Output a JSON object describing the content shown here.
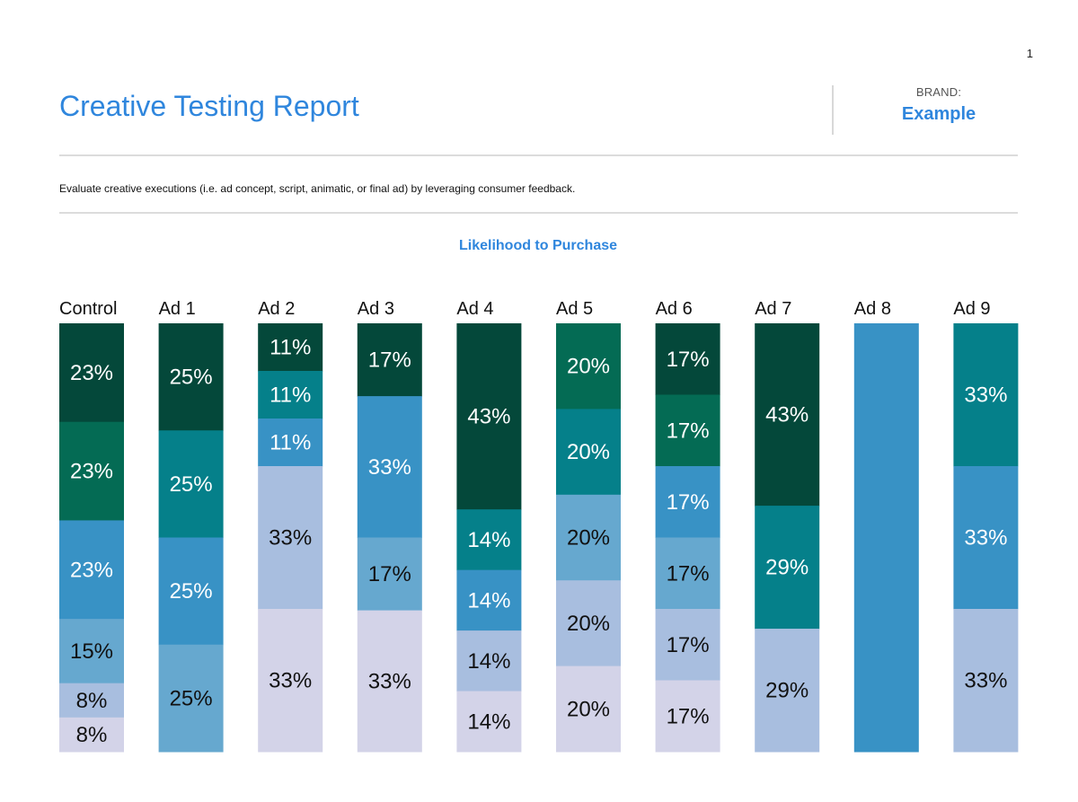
{
  "page_number": "1",
  "report": {
    "title": "Creative Testing Report",
    "brand_label": "BRAND:",
    "brand_value": "Example",
    "description": "Evaluate creative executions (i.e. ad concept, script, animatic, or final ad) by leveraging consumer feedback."
  },
  "colors": {
    "accent": "#2f86dd",
    "segments": [
      "#04483a",
      "#046b54",
      "#05808a",
      "#3892c5",
      "#66a8cf",
      "#a8bedf",
      "#d3d3e8"
    ],
    "dark_text": "#111111",
    "light_text": "#ffffff"
  },
  "chart_data": {
    "type": "bar",
    "stacked": true,
    "normalized": true,
    "title": "Likelihood to Purchase",
    "categories": [
      "Control",
      "Ad 1",
      "Ad 2",
      "Ad 3",
      "Ad 4",
      "Ad 5",
      "Ad 6",
      "Ad 7",
      "Ad 8",
      "Ad 9"
    ],
    "bars": [
      {
        "category": "Control",
        "segments": [
          {
            "value": 23,
            "label": "23%",
            "color": "#04483a"
          },
          {
            "value": 23,
            "label": "23%",
            "color": "#046b54"
          },
          {
            "value": 23,
            "label": "23%",
            "color": "#3892c5"
          },
          {
            "value": 15,
            "label": "15%",
            "color": "#66a8cf"
          },
          {
            "value": 8,
            "label": "8%",
            "color": "#a8bedf"
          },
          {
            "value": 8,
            "label": "8%",
            "color": "#d3d3e8"
          }
        ]
      },
      {
        "category": "Ad 1",
        "segments": [
          {
            "value": 25,
            "label": "25%",
            "color": "#04483a"
          },
          {
            "value": 25,
            "label": "25%",
            "color": "#05808a"
          },
          {
            "value": 25,
            "label": "25%",
            "color": "#3892c5"
          },
          {
            "value": 25,
            "label": "25%",
            "color": "#66a8cf"
          }
        ]
      },
      {
        "category": "Ad 2",
        "segments": [
          {
            "value": 11,
            "label": "11%",
            "color": "#04483a"
          },
          {
            "value": 11,
            "label": "11%",
            "color": "#05808a"
          },
          {
            "value": 11,
            "label": "11%",
            "color": "#3892c5"
          },
          {
            "value": 33,
            "label": "33%",
            "color": "#a8bedf"
          },
          {
            "value": 33,
            "label": "33%",
            "color": "#d3d3e8"
          }
        ]
      },
      {
        "category": "Ad 3",
        "segments": [
          {
            "value": 17,
            "label": "17%",
            "color": "#04483a"
          },
          {
            "value": 33,
            "label": "33%",
            "color": "#3892c5"
          },
          {
            "value": 17,
            "label": "17%",
            "color": "#66a8cf"
          },
          {
            "value": 33,
            "label": "33%",
            "color": "#d3d3e8"
          }
        ]
      },
      {
        "category": "Ad 4",
        "segments": [
          {
            "value": 43,
            "label": "43%",
            "color": "#04483a"
          },
          {
            "value": 14,
            "label": "14%",
            "color": "#05808a"
          },
          {
            "value": 14,
            "label": "14%",
            "color": "#3892c5"
          },
          {
            "value": 14,
            "label": "14%",
            "color": "#a8bedf"
          },
          {
            "value": 14,
            "label": "14%",
            "color": "#d3d3e8"
          }
        ]
      },
      {
        "category": "Ad 5",
        "segments": [
          {
            "value": 20,
            "label": "20%",
            "color": "#046b54"
          },
          {
            "value": 20,
            "label": "20%",
            "color": "#05808a"
          },
          {
            "value": 20,
            "label": "20%",
            "color": "#66a8cf"
          },
          {
            "value": 20,
            "label": "20%",
            "color": "#a8bedf"
          },
          {
            "value": 20,
            "label": "20%",
            "color": "#d3d3e8"
          }
        ]
      },
      {
        "category": "Ad 6",
        "segments": [
          {
            "value": 17,
            "label": "17%",
            "color": "#04483a"
          },
          {
            "value": 17,
            "label": "17%",
            "color": "#046b54"
          },
          {
            "value": 17,
            "label": "17%",
            "color": "#3892c5"
          },
          {
            "value": 17,
            "label": "17%",
            "color": "#66a8cf"
          },
          {
            "value": 17,
            "label": "17%",
            "color": "#a8bedf"
          },
          {
            "value": 17,
            "label": "17%",
            "color": "#d3d3e8"
          }
        ]
      },
      {
        "category": "Ad 7",
        "segments": [
          {
            "value": 43,
            "label": "43%",
            "color": "#04483a"
          },
          {
            "value": 29,
            "label": "29%",
            "color": "#05808a"
          },
          {
            "value": 29,
            "label": "29%",
            "color": "#a8bedf"
          }
        ]
      },
      {
        "category": "Ad 8",
        "segments": [
          {
            "value": 100,
            "label": "",
            "color": "#3892c5"
          }
        ]
      },
      {
        "category": "Ad 9",
        "segments": [
          {
            "value": 33,
            "label": "33%",
            "color": "#05808a"
          },
          {
            "value": 33,
            "label": "33%",
            "color": "#3892c5"
          },
          {
            "value": 33,
            "label": "33%",
            "color": "#a8bedf"
          }
        ]
      }
    ],
    "legend": "none",
    "grid": false
  }
}
